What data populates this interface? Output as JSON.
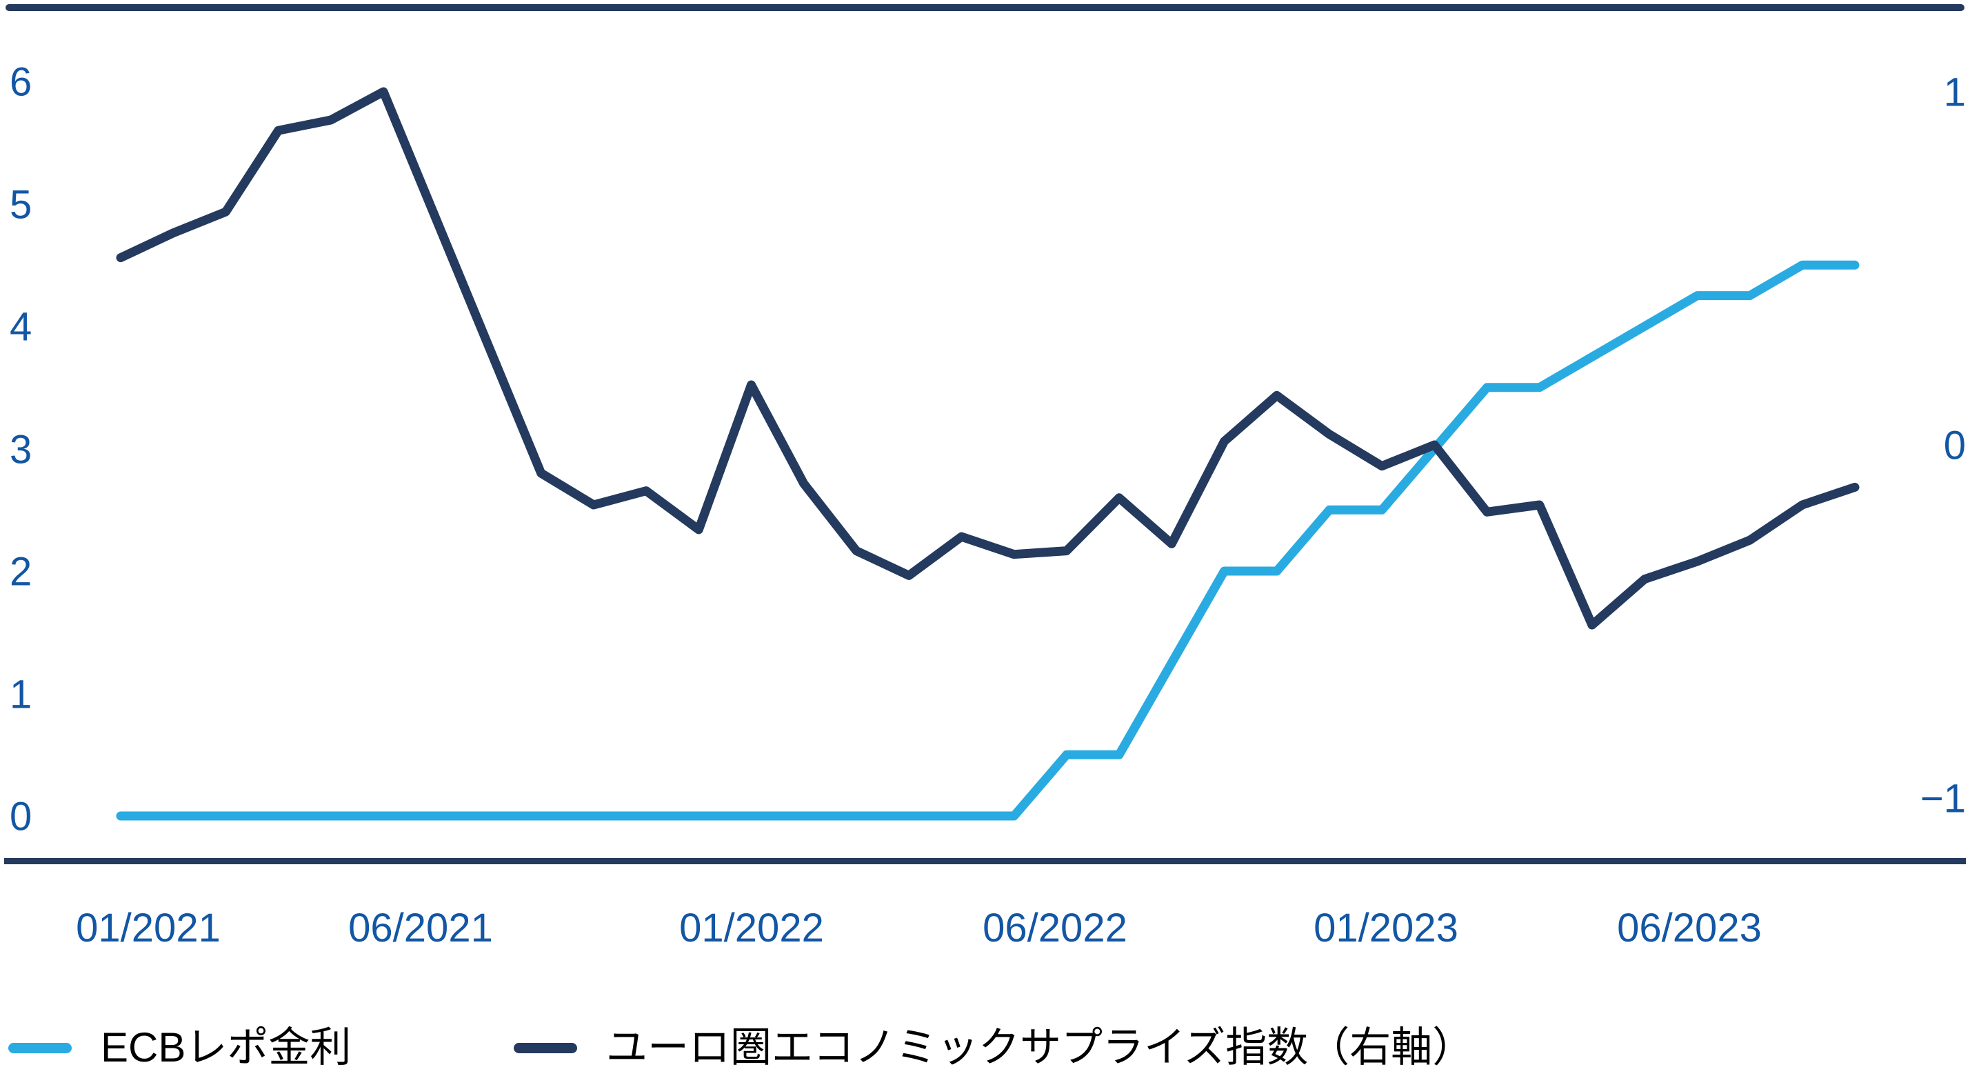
{
  "colors": {
    "background": "#FFFFFF",
    "axis_text": "#1256A4",
    "rule": "#243A5E",
    "ecb_line": "#29ABE2",
    "surprise_line": "#243A5E"
  },
  "chart_data": {
    "type": "line",
    "title": "",
    "grid": false,
    "legend_position": "bottom-left",
    "x": [
      "01/2021",
      "02/2021",
      "03/2021",
      "04/2021",
      "05/2021",
      "06/2021",
      "07/2021",
      "08/2021",
      "09/2021",
      "10/2021",
      "11/2021",
      "12/2021",
      "01/2022",
      "02/2022",
      "03/2022",
      "04/2022",
      "05/2022",
      "06/2022",
      "07/2022",
      "08/2022",
      "09/2022",
      "10/2022",
      "11/2022",
      "12/2022",
      "01/2023",
      "02/2023",
      "03/2023",
      "04/2023",
      "05/2023",
      "06/2023",
      "07/2023",
      "08/2023",
      "09/2023",
      "10/2023"
    ],
    "x_axis": {
      "tick_indices": [
        0,
        5,
        12,
        17,
        24,
        29
      ],
      "tick_labels": [
        "01/2021",
        "06/2021",
        "01/2022",
        "06/2022",
        "01/2023",
        "06/2023"
      ]
    },
    "y_left_axis": {
      "range": [
        0,
        6
      ],
      "tick_values": [
        6,
        5,
        4,
        3,
        2,
        1,
        0
      ],
      "tick_labels": [
        "6",
        "5",
        "4",
        "3",
        "2",
        "1",
        "0"
      ]
    },
    "y_right_axis": {
      "range": [
        -1,
        1
      ],
      "tick_values": [
        1,
        0,
        -1
      ],
      "tick_labels": [
        "1",
        "0",
        "−1"
      ]
    },
    "series": [
      {
        "name": "ECBレポ金利",
        "axis": "left",
        "color": "#29ABE2",
        "values": [
          0,
          0,
          0,
          0,
          0,
          0,
          0,
          0,
          0,
          0,
          0,
          0,
          0,
          0,
          0,
          0,
          0,
          0,
          0.5,
          0.5,
          1.25,
          2,
          2,
          2.5,
          2.5,
          3,
          3.5,
          3.5,
          3.75,
          4,
          4.25,
          4.25,
          4.5,
          4.5
        ]
      },
      {
        "name": "ユーロ圏エコノミックサプライズ指数（右軸）",
        "axis": "right",
        "color": "#243A5E",
        "values": [
          0.53,
          0.6,
          0.66,
          0.89,
          0.92,
          1,
          0.64,
          0.28,
          -0.08,
          -0.17,
          -0.13,
          -0.24,
          0.17,
          -0.11,
          -0.3,
          -0.37,
          -0.26,
          -0.31,
          -0.3,
          -0.15,
          -0.28,
          0.01,
          0.14,
          0.03,
          -0.06,
          0,
          -0.19,
          -0.17,
          -0.51,
          -0.38,
          -0.33,
          -0.27,
          -0.17,
          -0.12
        ]
      }
    ]
  },
  "legend": {
    "items": [
      {
        "label": "ECBレポ金利",
        "color": "#29ABE2"
      },
      {
        "label": "ユーロ圏エコノミックサプライズ指数（右軸）",
        "color": "#243A5E"
      }
    ]
  }
}
